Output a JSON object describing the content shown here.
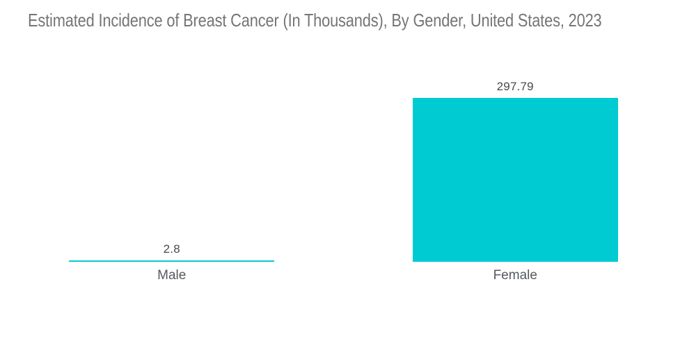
{
  "page": {
    "background": "#FFFFFF"
  },
  "chart_data": {
    "type": "bar",
    "title": "Estimated Incidence of Breast Cancer (In Thousands), By Gender, United States, 2023",
    "categories": [
      "Male",
      "Female"
    ],
    "values": [
      2.8,
      297.79
    ],
    "value_labels": [
      "2.8",
      "297.79"
    ],
    "xlabel": "",
    "ylabel": "",
    "ylim": [
      0,
      297.79
    ],
    "grid": false,
    "legend": false,
    "axes_visible": false,
    "value_label_position": "above-bar",
    "category_label_position": "below-bar",
    "bar_color": "#00CBD2",
    "colors": {
      "bar": "#00CBD2",
      "title_text": "#757575",
      "value_text": "#4A4A4A",
      "category_text": "#55595E",
      "background": "#FFFFFF"
    }
  }
}
